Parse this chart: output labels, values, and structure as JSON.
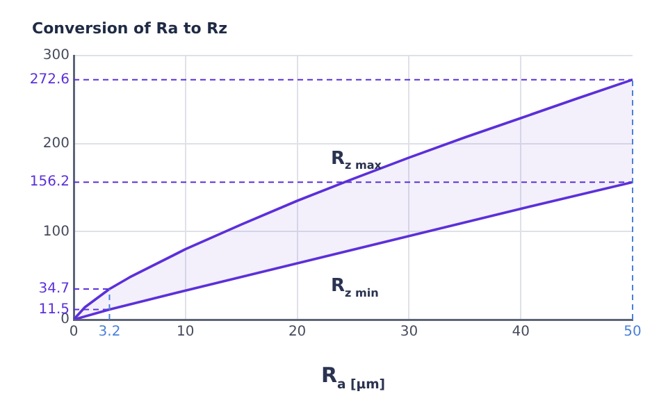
{
  "chart_data": {
    "type": "line",
    "title": "Conversion of Ra to Rz",
    "xlabel": "R$_{a [µm]}$",
    "series": [
      {
        "name": "R$_{z max}$",
        "type": "area",
        "color": "#5b2fd9",
        "x": [
          0,
          1,
          3.2,
          5,
          10,
          15,
          20,
          25,
          30,
          35,
          40,
          45,
          50
        ],
        "values": [
          0,
          14,
          34.7,
          48,
          80,
          108,
          135,
          160,
          184,
          207,
          229,
          251,
          272.6
        ]
      },
      {
        "name": "R$_{z min}$",
        "color": "#5b2fd9",
        "x": [
          0,
          3.2,
          10,
          20,
          30,
          40,
          50
        ],
        "values": [
          0,
          11.5,
          33,
          64,
          95,
          126,
          156.2
        ]
      },
      {
        "color": "#5b2fd9",
        "line_style": "dashed",
        "x": [
          0,
          3.2
        ],
        "values": [
          34.7,
          34.7
        ]
      },
      {
        "color": "#5b2fd9",
        "line_style": "dashed",
        "x": [
          0,
          3.2
        ],
        "values": [
          11.5,
          11.5
        ]
      }
    ],
    "xlim": [
      0,
      50
    ],
    "xticks": [
      0,
      3.2,
      10,
      20,
      30,
      40,
      50
    ],
    "ylim": [
      0,
      300
    ],
    "yticks": [
      0,
      11.5,
      34.7,
      100,
      156.2,
      200,
      272.6,
      300
    ],
    "grid": true,
    "marker": "none",
    "line_style": "solid",
    "ref_lines": [
      {
        "axis": "y",
        "value": 272.6,
        "color": "#5b2fd9",
        "line_style": "dashed"
      },
      {
        "axis": "y",
        "value": 156.2,
        "color": "#5b2fd9",
        "line_style": "dashed"
      },
      {
        "axis": "x",
        "value": 3.2,
        "color": "#4a7fd8",
        "line_style": "dashed"
      },
      {
        "axis": "x",
        "value": 50,
        "color": "#4a7fd8",
        "line_style": "dashed"
      }
    ]
  }
}
